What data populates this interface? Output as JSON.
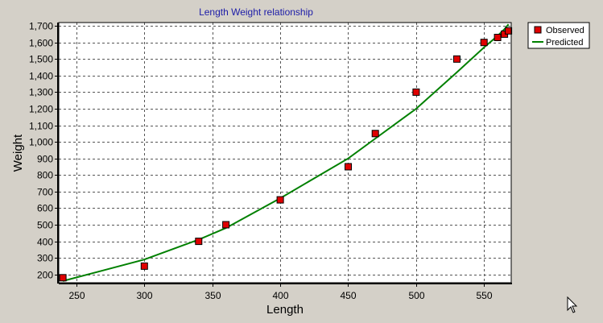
{
  "chart_data": {
    "type": "scatter",
    "title": "Length Weight relationship",
    "xlabel": "Length",
    "ylabel": "Weight",
    "xlim": [
      237,
      570
    ],
    "ylim": [
      150,
      1720
    ],
    "x_ticks": [
      250,
      300,
      350,
      400,
      450,
      500,
      550
    ],
    "y_ticks": [
      200,
      300,
      400,
      500,
      600,
      700,
      800,
      900,
      1000,
      1100,
      1200,
      1300,
      1400,
      1500,
      1600,
      1700
    ],
    "x_tick_labels": [
      "250",
      "300",
      "350",
      "400",
      "450",
      "500",
      "550"
    ],
    "y_tick_labels": [
      "200",
      "300",
      "400",
      "500",
      "600",
      "700",
      "800",
      "900",
      "1,000",
      "1,100",
      "1,200",
      "1,300",
      "1,400",
      "1,500",
      "1,600",
      "1,700"
    ],
    "grid": true,
    "legend_position": "top-right",
    "series": [
      {
        "name": "Observed",
        "style": "markers",
        "color": "#e00000",
        "x": [
          240,
          300,
          340,
          360,
          400,
          450,
          470,
          500,
          530,
          550,
          560,
          565,
          568
        ],
        "y": [
          180,
          250,
          400,
          500,
          650,
          850,
          1050,
          1300,
          1500,
          1600,
          1630,
          1650,
          1670
        ]
      },
      {
        "name": "Predicted",
        "style": "line",
        "color": "#008000",
        "x": [
          240,
          300,
          340,
          360,
          400,
          450,
          470,
          500,
          530,
          550,
          560,
          565,
          568
        ],
        "y": [
          160,
          290,
          410,
          480,
          660,
          900,
          1020,
          1200,
          1420,
          1570,
          1640,
          1680,
          1710
        ]
      }
    ]
  }
}
